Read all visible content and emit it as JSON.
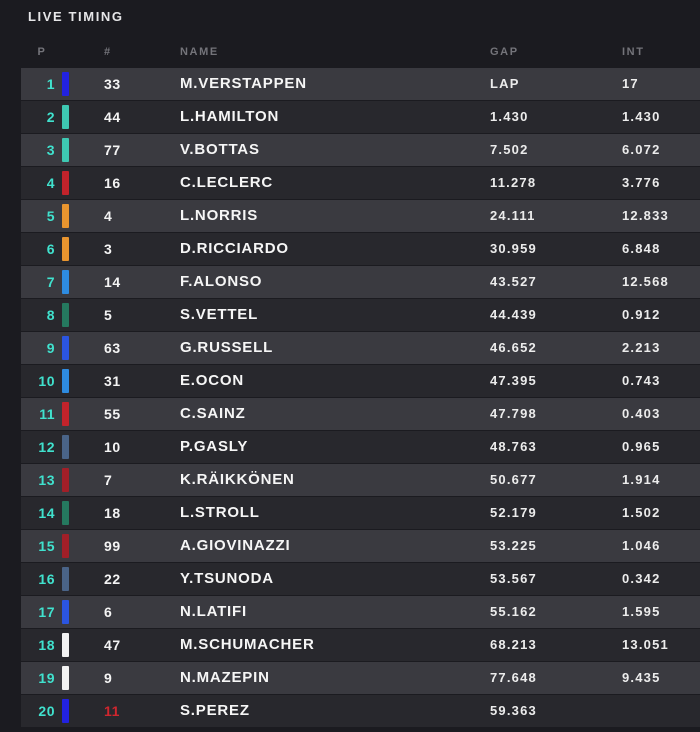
{
  "title": "LIVE TIMING",
  "columns": {
    "p": "P",
    "num": "#",
    "name": "NAME",
    "gap": "GAP",
    "int": "INT"
  },
  "colors": {
    "page_bg": "#1B1B20",
    "row_odd_bg": "#3A3A40",
    "row_even_bg": "#28282D",
    "position_text": "#40E2CE",
    "number_alert": "#D0262E",
    "teams": {
      "red-bull": "#2222E0",
      "mercedes": "#3EC8B2",
      "ferrari": "#C2232B",
      "mclaren": "#E9952F",
      "alpine": "#2E8BE0",
      "aston-martin": "#25795F",
      "williams": "#2B55E0",
      "alphatauri": "#4A6488",
      "alfa-romeo": "#A11F28",
      "haas": "#F2F2F2"
    }
  },
  "rows": [
    {
      "pos": "1",
      "team": "red-bull",
      "num": "33",
      "num_alert": false,
      "name": "M.VERSTAPPEN",
      "gap": "LAP",
      "int": "17"
    },
    {
      "pos": "2",
      "team": "mercedes",
      "num": "44",
      "num_alert": false,
      "name": "L.HAMILTON",
      "gap": "1.430",
      "int": "1.430"
    },
    {
      "pos": "3",
      "team": "mercedes",
      "num": "77",
      "num_alert": false,
      "name": "V.BOTTAS",
      "gap": "7.502",
      "int": "6.072"
    },
    {
      "pos": "4",
      "team": "ferrari",
      "num": "16",
      "num_alert": false,
      "name": "C.LECLERC",
      "gap": "11.278",
      "int": "3.776"
    },
    {
      "pos": "5",
      "team": "mclaren",
      "num": "4",
      "num_alert": false,
      "name": "L.NORRIS",
      "gap": "24.111",
      "int": "12.833"
    },
    {
      "pos": "6",
      "team": "mclaren",
      "num": "3",
      "num_alert": false,
      "name": "D.RICCIARDO",
      "gap": "30.959",
      "int": "6.848"
    },
    {
      "pos": "7",
      "team": "alpine",
      "num": "14",
      "num_alert": false,
      "name": "F.ALONSO",
      "gap": "43.527",
      "int": "12.568"
    },
    {
      "pos": "8",
      "team": "aston-martin",
      "num": "5",
      "num_alert": false,
      "name": "S.VETTEL",
      "gap": "44.439",
      "int": "0.912"
    },
    {
      "pos": "9",
      "team": "williams",
      "num": "63",
      "num_alert": false,
      "name": "G.RUSSELL",
      "gap": "46.652",
      "int": "2.213"
    },
    {
      "pos": "10",
      "team": "alpine",
      "num": "31",
      "num_alert": false,
      "name": "E.OCON",
      "gap": "47.395",
      "int": "0.743"
    },
    {
      "pos": "11",
      "team": "ferrari",
      "num": "55",
      "num_alert": false,
      "name": "C.SAINZ",
      "gap": "47.798",
      "int": "0.403"
    },
    {
      "pos": "12",
      "team": "alphatauri",
      "num": "10",
      "num_alert": false,
      "name": "P.GASLY",
      "gap": "48.763",
      "int": "0.965"
    },
    {
      "pos": "13",
      "team": "alfa-romeo",
      "num": "7",
      "num_alert": false,
      "name": "K.RÄIKKÖNEN",
      "gap": "50.677",
      "int": "1.914"
    },
    {
      "pos": "14",
      "team": "aston-martin",
      "num": "18",
      "num_alert": false,
      "name": "L.STROLL",
      "gap": "52.179",
      "int": "1.502"
    },
    {
      "pos": "15",
      "team": "alfa-romeo",
      "num": "99",
      "num_alert": false,
      "name": "A.GIOVINAZZI",
      "gap": "53.225",
      "int": "1.046"
    },
    {
      "pos": "16",
      "team": "alphatauri",
      "num": "22",
      "num_alert": false,
      "name": "Y.TSUNODA",
      "gap": "53.567",
      "int": "0.342"
    },
    {
      "pos": "17",
      "team": "williams",
      "num": "6",
      "num_alert": false,
      "name": "N.LATIFI",
      "gap": "55.162",
      "int": "1.595"
    },
    {
      "pos": "18",
      "team": "haas",
      "num": "47",
      "num_alert": false,
      "name": "M.SCHUMACHER",
      "gap": "68.213",
      "int": "13.051"
    },
    {
      "pos": "19",
      "team": "haas",
      "num": "9",
      "num_alert": false,
      "name": "N.MAZEPIN",
      "gap": "77.648",
      "int": "9.435"
    },
    {
      "pos": "20",
      "team": "red-bull",
      "num": "11",
      "num_alert": true,
      "name": "S.PEREZ",
      "gap": "59.363",
      "int": ""
    }
  ]
}
